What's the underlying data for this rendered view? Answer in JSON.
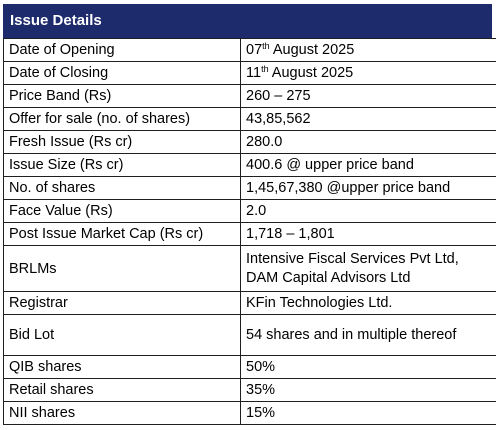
{
  "title": "Issue Details",
  "rows": [
    {
      "label": "Date of Opening",
      "value_pre": "07",
      "value_sup": "th",
      "value_post": " August 2025"
    },
    {
      "label": "Date of Closing",
      "value_pre": "11",
      "value_sup": "th",
      "value_post": " August 2025"
    },
    {
      "label": "Price Band (Rs)",
      "value": "260 – 275"
    },
    {
      "label": "Offer for sale (no. of shares)",
      "value": "43,85,562"
    },
    {
      "label": "Fresh Issue (Rs cr)",
      "value": "280.0"
    },
    {
      "label": "Issue Size (Rs cr)",
      "value": "400.6 @ upper price band"
    },
    {
      "label": "No. of shares",
      "value": "1,45,67,380 @upper price band"
    },
    {
      "label": "Face Value (Rs)",
      "value": "2.0"
    },
    {
      "label": "Post Issue Market Cap (Rs cr)",
      "value": "1,718 – 1,801"
    },
    {
      "label": "BRLMs",
      "value_line1": "Intensive Fiscal Services Pvt Ltd,",
      "value_line2": "DAM Capital Advisors Ltd"
    },
    {
      "label": "Registrar",
      "value": "KFin Technologies Ltd."
    },
    {
      "label": "Bid Lot",
      "value": "54 shares and in multiple thereof"
    },
    {
      "label": "QIB shares",
      "value": "50%"
    },
    {
      "label": "Retail shares",
      "value": "35%"
    },
    {
      "label": "NII shares",
      "value": "15%"
    }
  ],
  "colors": {
    "header_bg": "#1d2a6b",
    "header_text": "#ffffff",
    "border": "#1f1f1f"
  }
}
